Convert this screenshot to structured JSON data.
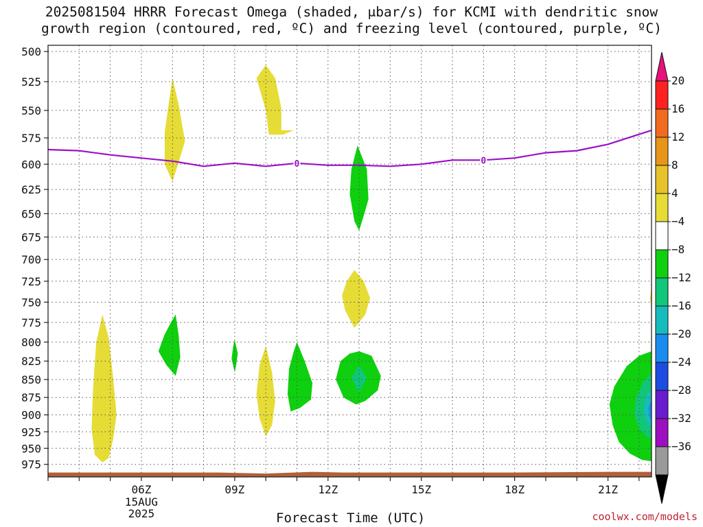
{
  "title_line1": "2025081504 HRRR Forecast Omega (shaded, μbar/s) for KCMI with dendritic snow",
  "title_line2": "growth region (contoured, red, ºC) and freezing level (contoured, purple, ºC)",
  "credit": "coolwx.com/models",
  "chart_data": {
    "type": "time-height contour",
    "xlabel": "Forecast Time (UTC)",
    "x_range_hours": [
      3.0,
      22.4
    ],
    "x_ticks": [
      {
        "hour": 6,
        "label": "06Z",
        "sub": [
          "15AUG",
          "2025"
        ]
      },
      {
        "hour": 9,
        "label": "09Z"
      },
      {
        "hour": 12,
        "label": "12Z"
      },
      {
        "hour": 15,
        "label": "15Z"
      },
      {
        "hour": 18,
        "label": "18Z"
      },
      {
        "hour": 21,
        "label": "21Z"
      }
    ],
    "y_scale": "log",
    "y_range_hpa": [
      495,
      995
    ],
    "y_ticks": [
      500,
      525,
      550,
      575,
      600,
      625,
      650,
      675,
      700,
      725,
      750,
      775,
      800,
      825,
      850,
      875,
      900,
      925,
      950,
      975
    ],
    "grid": true,
    "colorbar": {
      "labels": [
        "20",
        "16",
        "12",
        "8",
        "4",
        "−4",
        "−8",
        "−12",
        "−16",
        "−20",
        "−24",
        "−28",
        "−32",
        "−36"
      ],
      "colors": [
        "#ff2020",
        "#f26a1e",
        "#e8951a",
        "#e8c22a",
        "#e6dc36",
        "#ffffff",
        "#0ed00e",
        "#10c678",
        "#16bcbc",
        "#1a8cf0",
        "#1c4ce0",
        "#6a1cd0",
        "#9c10c0",
        "#9a9a9a"
      ],
      "top_arrow_color": "#e8107a",
      "bottom_arrow_color": "#000000"
    },
    "freezing_level": {
      "color": "#9a10c8",
      "label": "0",
      "label_hours": [
        11.0,
        17.0
      ],
      "points": [
        [
          3.0,
          586
        ],
        [
          4.0,
          587
        ],
        [
          5.0,
          591
        ],
        [
          6.0,
          594
        ],
        [
          7.0,
          597
        ],
        [
          8.0,
          602
        ],
        [
          9.0,
          599
        ],
        [
          10.0,
          602
        ],
        [
          11.0,
          599
        ],
        [
          12.0,
          601
        ],
        [
          13.0,
          601
        ],
        [
          14.0,
          602
        ],
        [
          15.0,
          600
        ],
        [
          16.0,
          596
        ],
        [
          17.0,
          596
        ],
        [
          18.0,
          594
        ],
        [
          19.0,
          589
        ],
        [
          20.0,
          587
        ],
        [
          21.0,
          581
        ],
        [
          22.4,
          568
        ]
      ]
    },
    "omega_regions": [
      {
        "fill": "#e6dc36",
        "points": [
          [
            4.75,
            765
          ],
          [
            4.95,
            795
          ],
          [
            5.1,
            850
          ],
          [
            5.2,
            900
          ],
          [
            5.1,
            935
          ],
          [
            4.95,
            965
          ],
          [
            4.75,
            972
          ],
          [
            4.5,
            960
          ],
          [
            4.4,
            920
          ],
          [
            4.45,
            860
          ],
          [
            4.55,
            800
          ]
        ]
      },
      {
        "fill": "#e6dc36",
        "points": [
          [
            7.0,
            522
          ],
          [
            7.2,
            545
          ],
          [
            7.4,
            578
          ],
          [
            7.2,
            598
          ],
          [
            7.0,
            617
          ],
          [
            6.75,
            600
          ],
          [
            6.75,
            570
          ],
          [
            6.9,
            540
          ]
        ]
      },
      {
        "fill": "#e6dc36",
        "points": [
          [
            10.0,
            511
          ],
          [
            10.3,
            522
          ],
          [
            10.5,
            548
          ],
          [
            10.5,
            568
          ],
          [
            10.9,
            568
          ],
          [
            10.55,
            572
          ],
          [
            10.1,
            572
          ],
          [
            10.0,
            550
          ],
          [
            9.7,
            522
          ]
        ]
      },
      {
        "fill": "#e6dc36",
        "points": [
          [
            12.85,
            712
          ],
          [
            13.15,
            725
          ],
          [
            13.35,
            745
          ],
          [
            13.2,
            765
          ],
          [
            12.85,
            782
          ],
          [
            12.55,
            760
          ],
          [
            12.45,
            742
          ],
          [
            12.6,
            725
          ]
        ]
      },
      {
        "fill": "#e6dc36",
        "points": [
          [
            10.0,
            805
          ],
          [
            10.2,
            840
          ],
          [
            10.3,
            880
          ],
          [
            10.2,
            915
          ],
          [
            10.0,
            932
          ],
          [
            9.8,
            905
          ],
          [
            9.7,
            870
          ],
          [
            9.8,
            830
          ]
        ]
      },
      {
        "fill": "#e6dc36",
        "points": [
          [
            22.4,
            733
          ],
          [
            22.35,
            745
          ],
          [
            22.4,
            760
          ]
        ]
      },
      {
        "fill": "#0ed00e",
        "points": [
          [
            12.95,
            582
          ],
          [
            13.25,
            605
          ],
          [
            13.3,
            635
          ],
          [
            13.15,
            652
          ],
          [
            13.0,
            668
          ],
          [
            12.85,
            658
          ],
          [
            12.7,
            630
          ],
          [
            12.75,
            605
          ]
        ]
      },
      {
        "fill": "#0ed00e",
        "points": [
          [
            7.1,
            765
          ],
          [
            7.2,
            792
          ],
          [
            7.25,
            820
          ],
          [
            7.1,
            845
          ],
          [
            6.8,
            830
          ],
          [
            6.55,
            812
          ],
          [
            6.75,
            790
          ],
          [
            6.95,
            775
          ]
        ]
      },
      {
        "fill": "#0ed00e",
        "points": [
          [
            9.0,
            797
          ],
          [
            9.1,
            815
          ],
          [
            9.05,
            830
          ],
          [
            9.0,
            840
          ],
          [
            8.9,
            822
          ],
          [
            8.95,
            806
          ]
        ]
      },
      {
        "fill": "#0ed00e",
        "points": [
          [
            11.0,
            800
          ],
          [
            11.25,
            825
          ],
          [
            11.5,
            855
          ],
          [
            11.45,
            878
          ],
          [
            11.1,
            890
          ],
          [
            10.8,
            895
          ],
          [
            10.7,
            870
          ],
          [
            10.75,
            835
          ],
          [
            10.9,
            812
          ]
        ]
      },
      {
        "fill": "#0ed00e",
        "points": [
          [
            13.0,
            812
          ],
          [
            13.4,
            818
          ],
          [
            13.7,
            845
          ],
          [
            13.6,
            865
          ],
          [
            13.2,
            880
          ],
          [
            12.9,
            885
          ],
          [
            12.5,
            875
          ],
          [
            12.25,
            850
          ],
          [
            12.4,
            825
          ],
          [
            12.7,
            815
          ]
        ]
      },
      {
        "fill": "#10c678",
        "points": [
          [
            13.0,
            830
          ],
          [
            13.25,
            848
          ],
          [
            13.0,
            868
          ],
          [
            12.75,
            848
          ]
        ]
      },
      {
        "fill": "#0ed00e",
        "points": [
          [
            22.4,
            812
          ],
          [
            22.0,
            818
          ],
          [
            21.6,
            832
          ],
          [
            21.2,
            860
          ],
          [
            21.05,
            885
          ],
          [
            21.15,
            915
          ],
          [
            21.35,
            940
          ],
          [
            21.7,
            958
          ],
          [
            22.1,
            968
          ],
          [
            22.4,
            970
          ]
        ]
      },
      {
        "fill": "#10c678",
        "points": [
          [
            22.4,
            842
          ],
          [
            22.15,
            852
          ],
          [
            21.9,
            875
          ],
          [
            21.85,
            900
          ],
          [
            22.0,
            920
          ],
          [
            22.25,
            932
          ],
          [
            22.4,
            935
          ]
        ]
      },
      {
        "fill": "#16bcbc",
        "points": [
          [
            22.4,
            862
          ],
          [
            22.2,
            875
          ],
          [
            22.15,
            898
          ],
          [
            22.3,
            915
          ],
          [
            22.4,
            918
          ]
        ]
      },
      {
        "fill": "#1a8cf0",
        "points": [
          [
            22.4,
            878
          ],
          [
            22.3,
            890
          ],
          [
            22.35,
            905
          ],
          [
            22.4,
            908
          ]
        ]
      }
    ],
    "terrain_color": "#b0603a"
  }
}
